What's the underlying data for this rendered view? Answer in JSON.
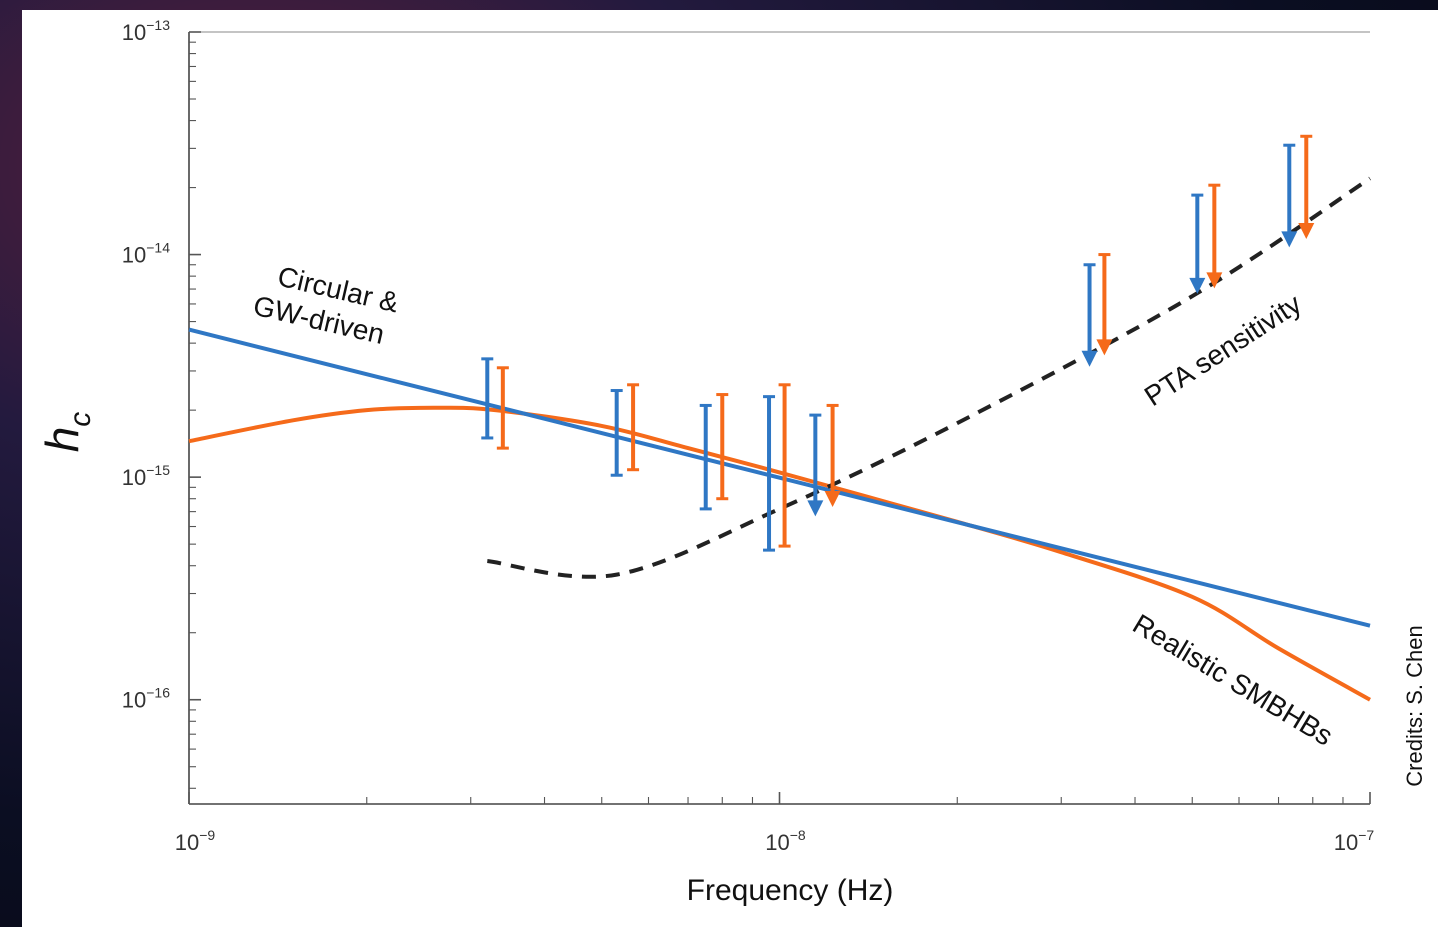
{
  "chart_data": {
    "type": "line",
    "title": "",
    "xlabel": "Frequency (Hz)",
    "ylabel": "h_c",
    "xscale": "log",
    "yscale": "log",
    "xlim": [
      1e-09,
      1e-07
    ],
    "ylim": [
      3.4e-17,
      1e-13
    ],
    "x_ticks": [
      {
        "value": 1e-09,
        "base": "10",
        "exp": "−9"
      },
      {
        "value": 1e-08,
        "base": "10",
        "exp": "−8"
      },
      {
        "value": 1e-07,
        "base": "10",
        "exp": "−7"
      }
    ],
    "y_ticks": [
      {
        "value": 1e-16,
        "base": "10",
        "exp": "−16"
      },
      {
        "value": 1e-15,
        "base": "10",
        "exp": "−15"
      },
      {
        "value": 1e-14,
        "base": "10",
        "exp": "−14"
      },
      {
        "value": 1e-13,
        "base": "10",
        "exp": "−13"
      }
    ],
    "series": [
      {
        "name": "Circular & GW-driven",
        "color": "#2f77c4",
        "style": "solid",
        "x": [
          1e-09,
          1e-07
        ],
        "y": [
          4.6e-15,
          2.15e-16
        ]
      },
      {
        "name": "Realistic SMBHBs",
        "color": "#f56a1a",
        "style": "solid",
        "x": [
          1e-09,
          1.5e-09,
          2e-09,
          2.6e-09,
          3.3e-09,
          5e-09,
          7e-09,
          1e-08,
          1.4e-08,
          2e-08,
          3e-08,
          5e-08,
          7e-08,
          1e-07
        ],
        "y": [
          1.45e-15,
          1.8e-15,
          2e-15,
          2.05e-15,
          2e-15,
          1.7e-15,
          1.35e-15,
          1.05e-15,
          8.2e-16,
          6.3e-16,
          4.6e-16,
          2.9e-16,
          1.7e-16,
          1e-16
        ]
      },
      {
        "name": "PTA sensitivity",
        "color": "#222222",
        "style": "dashed",
        "x": [
          3.2e-09,
          5.3e-09,
          1e-08,
          2e-08,
          5e-08,
          1e-07
        ],
        "y": [
          4.2e-16,
          3.65e-16,
          7.2e-16,
          1.75e-15,
          6.5e-15,
          2.2e-14
        ]
      }
    ],
    "error_bars": [
      {
        "group": "blue",
        "color": "#2f77c4",
        "x": 3.2e-09,
        "low": 1.5e-15,
        "high": 3.4e-15,
        "upper_limit": false
      },
      {
        "group": "orange",
        "color": "#f56a1a",
        "x": 3.4e-09,
        "low": 1.35e-15,
        "high": 3.1e-15,
        "upper_limit": false
      },
      {
        "group": "blue",
        "color": "#2f77c4",
        "x": 5.3e-09,
        "low": 1.02e-15,
        "high": 2.45e-15,
        "upper_limit": false
      },
      {
        "group": "orange",
        "color": "#f56a1a",
        "x": 5.65e-09,
        "low": 1.08e-15,
        "high": 2.6e-15,
        "upper_limit": false
      },
      {
        "group": "blue",
        "color": "#2f77c4",
        "x": 7.5e-09,
        "low": 7.2e-16,
        "high": 2.1e-15,
        "upper_limit": false
      },
      {
        "group": "orange",
        "color": "#f56a1a",
        "x": 8e-09,
        "low": 8e-16,
        "high": 2.35e-15,
        "upper_limit": false
      },
      {
        "group": "blue",
        "color": "#2f77c4",
        "x": 9.6e-09,
        "low": 4.7e-16,
        "high": 2.3e-15,
        "upper_limit": false
      },
      {
        "group": "orange",
        "color": "#f56a1a",
        "x": 1.02e-08,
        "low": 4.9e-16,
        "high": 2.6e-15,
        "upper_limit": false
      },
      {
        "group": "blue",
        "color": "#2f77c4",
        "x": 1.15e-08,
        "low": 6.8e-16,
        "high": 1.9e-15,
        "upper_limit": true
      },
      {
        "group": "orange",
        "color": "#f56a1a",
        "x": 1.23e-08,
        "low": 7.5e-16,
        "high": 2.1e-15,
        "upper_limit": true
      },
      {
        "group": "blue",
        "color": "#2f77c4",
        "x": 3.35e-08,
        "low": 3.2e-15,
        "high": 9e-15,
        "upper_limit": true
      },
      {
        "group": "orange",
        "color": "#f56a1a",
        "x": 3.55e-08,
        "low": 3.6e-15,
        "high": 1e-14,
        "upper_limit": true
      },
      {
        "group": "blue",
        "color": "#2f77c4",
        "x": 5.1e-08,
        "low": 6.8e-15,
        "high": 1.85e-14,
        "upper_limit": true
      },
      {
        "group": "orange",
        "color": "#f56a1a",
        "x": 5.45e-08,
        "low": 7.2e-15,
        "high": 2.05e-14,
        "upper_limit": true
      },
      {
        "group": "blue",
        "color": "#2f77c4",
        "x": 7.3e-08,
        "low": 1.1e-14,
        "high": 3.1e-14,
        "upper_limit": true
      },
      {
        "group": "orange",
        "color": "#f56a1a",
        "x": 7.8e-08,
        "low": 1.2e-14,
        "high": 3.4e-14,
        "upper_limit": true
      }
    ],
    "annotations": {
      "circular_line1": "Circular &",
      "circular_line2": "GW-driven",
      "pta": "PTA sensitivity",
      "realistic": "Realistic SMBHBs"
    },
    "grid": false,
    "legend": "none"
  },
  "credit": "Credits: S. Chen"
}
